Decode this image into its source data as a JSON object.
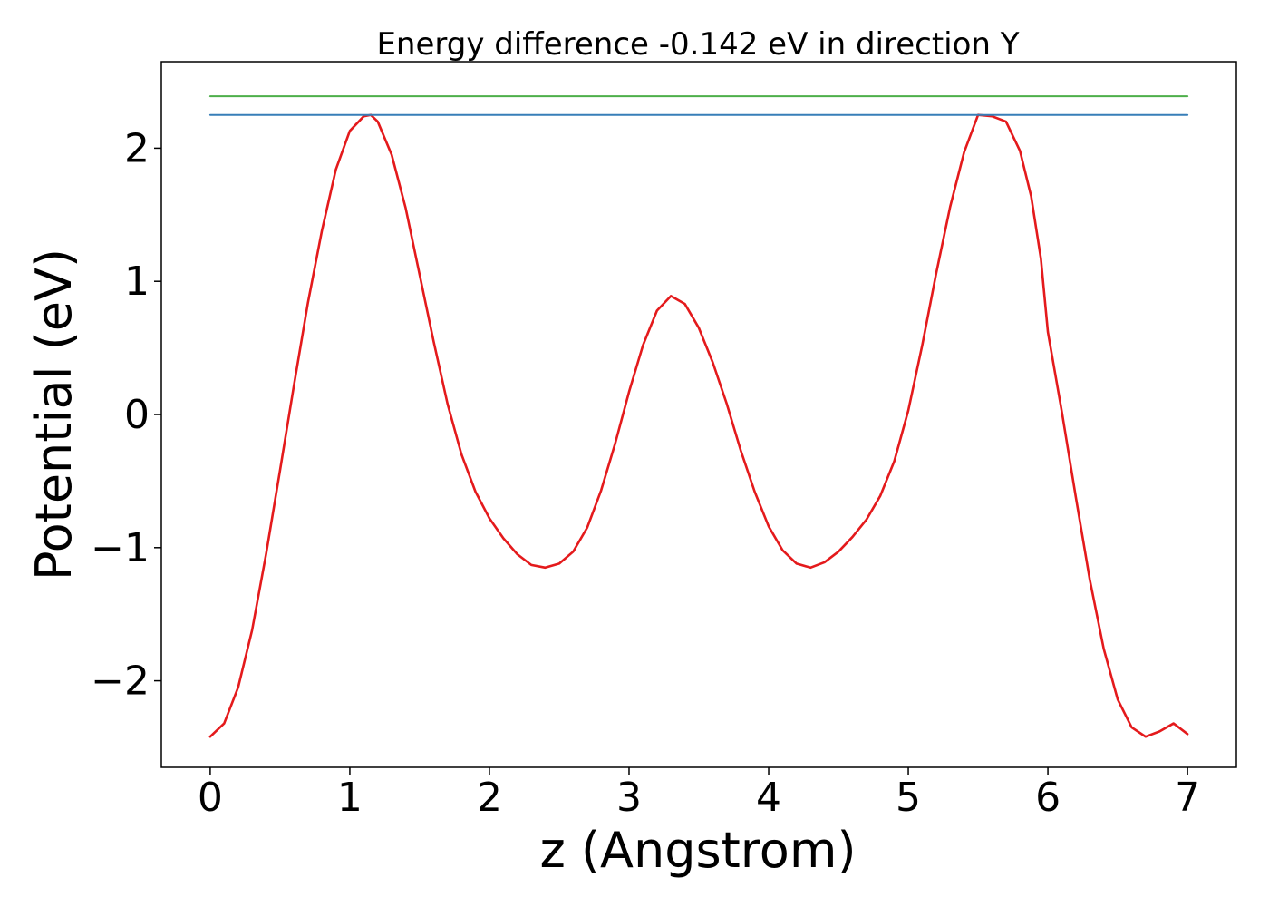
{
  "chart_data": {
    "type": "line",
    "title": "Energy difference -0.142 eV in direction Y",
    "xlabel": "z (Angstrom)",
    "ylabel": "Potential (eV)",
    "xlim": [
      -0.35,
      7.35
    ],
    "ylim": [
      -2.65,
      2.65
    ],
    "xticks": [
      0,
      1,
      2,
      3,
      4,
      5,
      6,
      7
    ],
    "xtick_labels": [
      "0",
      "1",
      "2",
      "3",
      "4",
      "5",
      "6",
      "7"
    ],
    "yticks": [
      -2,
      -1,
      0,
      1,
      2
    ],
    "ytick_labels": [
      "−2",
      "−1",
      "0",
      "1",
      "2"
    ],
    "grid": false,
    "series": [
      {
        "key": "potential",
        "color": "#e41a1c",
        "x": [
          0.0,
          0.1,
          0.2,
          0.3,
          0.4,
          0.5,
          0.6,
          0.7,
          0.8,
          0.9,
          1.0,
          1.1,
          1.15,
          1.2,
          1.3,
          1.4,
          1.5,
          1.6,
          1.7,
          1.8,
          1.9,
          2.0,
          2.1,
          2.2,
          2.3,
          2.4,
          2.5,
          2.6,
          2.7,
          2.8,
          2.9,
          3.0,
          3.1,
          3.2,
          3.3,
          3.4,
          3.5,
          3.6,
          3.7,
          3.8,
          3.9,
          4.0,
          4.1,
          4.2,
          4.3,
          4.4,
          4.5,
          4.6,
          4.7,
          4.8,
          4.9,
          5.0,
          5.1,
          5.2,
          5.3,
          5.4,
          5.5,
          5.6,
          5.7,
          5.8,
          5.88,
          5.95,
          6.0,
          6.1,
          6.2,
          6.3,
          6.4,
          6.5,
          6.6,
          6.7,
          6.8,
          6.9,
          7.0
        ],
        "y": [
          -2.42,
          -2.32,
          -2.05,
          -1.62,
          -1.05,
          -0.42,
          0.22,
          0.84,
          1.38,
          1.84,
          2.13,
          2.24,
          2.25,
          2.2,
          1.95,
          1.55,
          1.05,
          0.55,
          0.08,
          -0.3,
          -0.58,
          -0.78,
          -0.93,
          -1.05,
          -1.13,
          -1.15,
          -1.12,
          -1.03,
          -0.85,
          -0.57,
          -0.22,
          0.17,
          0.52,
          0.78,
          0.89,
          0.83,
          0.65,
          0.39,
          0.08,
          -0.27,
          -0.58,
          -0.84,
          -1.02,
          -1.12,
          -1.15,
          -1.11,
          -1.03,
          -0.92,
          -0.79,
          -0.61,
          -0.35,
          0.03,
          0.52,
          1.06,
          1.56,
          1.97,
          2.25,
          2.24,
          2.2,
          1.98,
          1.64,
          1.17,
          0.62,
          0.02,
          -0.62,
          -1.24,
          -1.76,
          -2.14,
          -2.35,
          -2.42,
          -2.38,
          -2.32,
          -2.4
        ]
      },
      {
        "key": "green-level",
        "color": "#4daf4a",
        "x": [
          0,
          7
        ],
        "y": [
          2.39,
          2.39
        ]
      },
      {
        "key": "blue-level",
        "color": "#377eb8",
        "x": [
          0,
          7
        ],
        "y": [
          2.25,
          2.25
        ]
      }
    ]
  }
}
